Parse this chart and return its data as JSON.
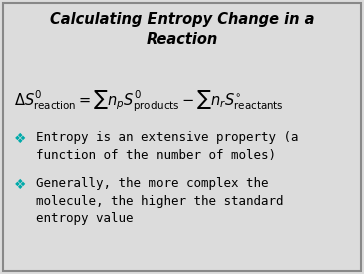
{
  "title_line1": "Calculating Entropy Change in a",
  "title_line2": "Reaction",
  "background_color": "#dcdcdc",
  "border_color": "#888888",
  "title_color": "#000000",
  "text_color": "#000000",
  "bullet_color": "#00aaaa",
  "equation": "$\\Delta S^{0}_{\\rm reaction} = \\sum n_{p} S^{0}_{\\rm products} - \\sum n_{r} S^{\\circ}_{\\rm reactants}$",
  "bullet1_line1": "Entropy is an extensive property (a",
  "bullet1_line2": "function of the number of moles)",
  "bullet2_line1": "Generally, the more complex the",
  "bullet2_line2": "molecule, the higher the standard",
  "bullet2_line3": "entropy value",
  "title_fontsize": 10.5,
  "eq_fontsize": 10.5,
  "bullet_fontsize": 9.0
}
